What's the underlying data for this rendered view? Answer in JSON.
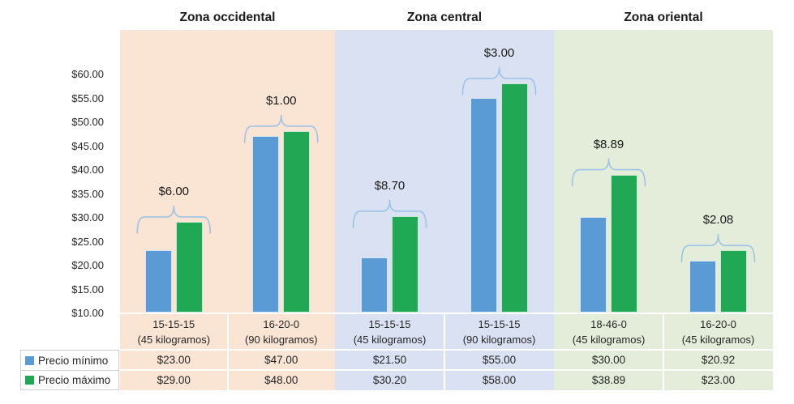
{
  "chart_data": {
    "type": "bar",
    "title": "",
    "y_axis": {
      "min": 10,
      "max": 65,
      "tick_step": 5,
      "ticks": [
        "$60.00",
        "$55.00",
        "$50.00",
        "$45.00",
        "$40.00",
        "$35.00",
        "$30.00",
        "$25.00",
        "$20.00",
        "$15.00",
        "$10.00"
      ],
      "grid": false
    },
    "categories": [
      "15-15-15 (45 kilogramos)",
      "16-20-0 (90 kilogramos)",
      "15-15-15 (45 kilogramos)",
      "15-15-15 (90 kilogramos)",
      "18-46-0 (45 kilogramos)",
      "16-20-0 (45 kilogramos)"
    ],
    "series": [
      {
        "name": "Precio mínimo",
        "color": "#5B9BD5",
        "values": [
          23.0,
          47.0,
          21.5,
          55.0,
          30.0,
          20.92
        ]
      },
      {
        "name": "Precio máximo",
        "color": "#21A855",
        "values": [
          29.0,
          48.0,
          30.2,
          58.0,
          38.89,
          23.0
        ]
      }
    ],
    "annotations": [
      "$6.00",
      "$1.00",
      "$8.70",
      "$3.00",
      "$8.89",
      "$2.08"
    ],
    "brace_color": "#9DC3E6",
    "legend_position": "bottom-left",
    "zones": [
      {
        "title": "Zona occidental",
        "panel_color": "#FAE4D4",
        "groups": [
          {
            "category_lines": [
              "15-15-15",
              "(45 kilogramos)"
            ],
            "min": 23.0,
            "max": 29.0,
            "min_label": "$23.00",
            "max_label": "$29.00",
            "diff_label": "$6.00"
          },
          {
            "category_lines": [
              "16-20-0",
              "(90 kilogramos)"
            ],
            "min": 47.0,
            "max": 48.0,
            "min_label": "$47.00",
            "max_label": "$48.00",
            "diff_label": "$1.00"
          }
        ]
      },
      {
        "title": "Zona central",
        "panel_color": "#D9E1F2",
        "groups": [
          {
            "category_lines": [
              "15-15-15",
              "(45 kilogramos)"
            ],
            "min": 21.5,
            "max": 30.2,
            "min_label": "$21.50",
            "max_label": "$30.20",
            "diff_label": "$8.70"
          },
          {
            "category_lines": [
              "15-15-15",
              "(90 kilogramos)"
            ],
            "min": 55.0,
            "max": 58.0,
            "min_label": "$55.00",
            "max_label": "$58.00",
            "diff_label": "$3.00"
          }
        ]
      },
      {
        "title": "Zona oriental",
        "panel_color": "#E3EDDA",
        "groups": [
          {
            "category_lines": [
              "18-46-0",
              "(45 kilogramos)"
            ],
            "min": 30.0,
            "max": 38.89,
            "min_label": "$30.00",
            "max_label": "$38.89",
            "diff_label": "$8.89"
          },
          {
            "category_lines": [
              "16-20-0",
              "(45 kilogramos)"
            ],
            "min": 20.92,
            "max": 23.0,
            "min_label": "$20.92",
            "max_label": "$23.00",
            "diff_label": "$2.08"
          }
        ]
      }
    ],
    "table": {
      "row_labels": [
        "Precio mínimo",
        "Precio máximo"
      ],
      "min_row": [
        "$23.00",
        "$47.00",
        "$21.50",
        "$55.00",
        "$30.00",
        "$20.92"
      ],
      "max_row": [
        "$29.00",
        "$48.00",
        "$30.20",
        "$58.00",
        "$38.89",
        "$23.00"
      ]
    }
  }
}
